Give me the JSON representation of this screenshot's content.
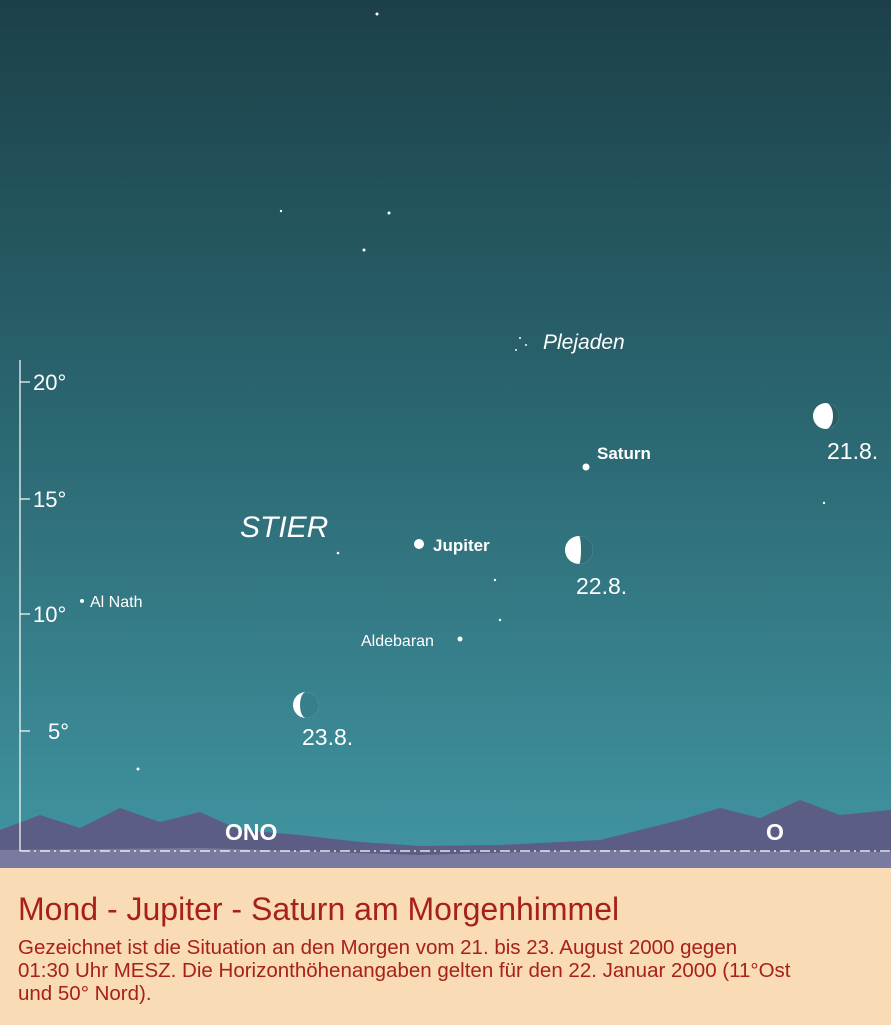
{
  "scale": {
    "ticks": [
      "20°",
      "15°",
      "10°",
      "5°"
    ]
  },
  "constellation": "STIER",
  "objects": {
    "pleiades": "Plejaden",
    "saturn": "Saturn",
    "jupiter": "Jupiter",
    "alnath": "Al Nath",
    "aldebaran": "Aldebaran"
  },
  "moons": [
    "21.8.",
    "22.8.",
    "23.8."
  ],
  "directions": [
    "ONO",
    "O"
  ],
  "caption": {
    "title": "Mond - Jupiter - Saturn am Morgenhimmel",
    "lines": [
      "Gezeichnet ist die Situation an den Morgen vom 21. bis 23. August 2000 gegen",
      "01:30 Uhr MESZ. Die Horizonthöhenangaben gelten für den 22. Januar 2000 (11°Ost",
      "und 50° Nord)."
    ]
  }
}
